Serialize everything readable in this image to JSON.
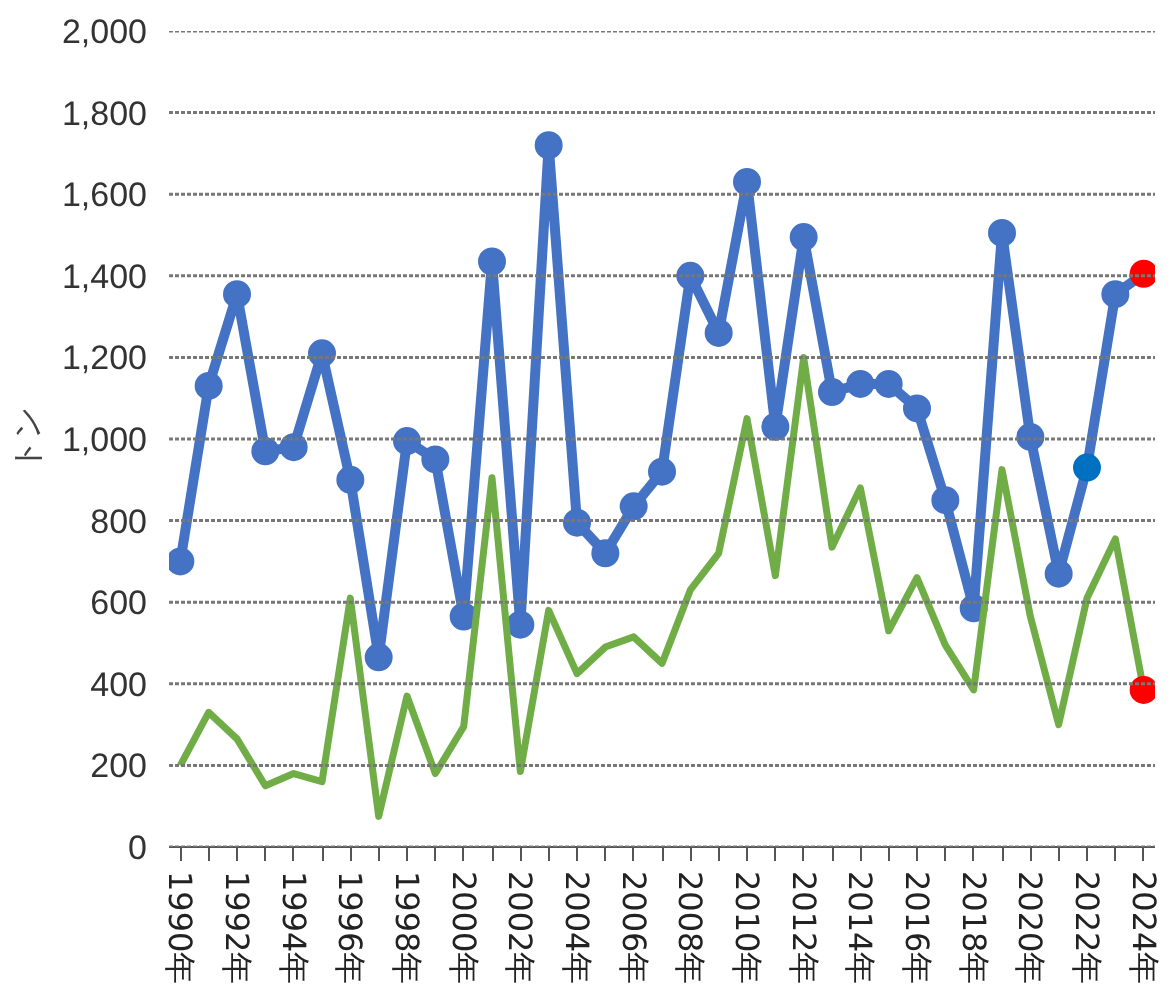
{
  "chart_data": {
    "type": "line",
    "ylabel": "トン",
    "categories": [
      "1990年",
      null,
      "1992年",
      null,
      "1994年",
      null,
      "1996年",
      null,
      "1998年",
      null,
      "2000年",
      null,
      "2002年",
      null,
      "2004年",
      null,
      "2006年",
      null,
      "2008年",
      null,
      "2010年",
      null,
      "2012年",
      null,
      "2014年",
      null,
      "2016年",
      null,
      "2018年",
      null,
      "2020年",
      null,
      "2022年",
      null,
      "2024年"
    ],
    "series": [
      {
        "color": "#4472c4",
        "marker": "circle",
        "values": [
          700,
          1130,
          1355,
          970,
          980,
          1210,
          900,
          465,
          995,
          950,
          565,
          1435,
          545,
          1720,
          795,
          720,
          835,
          920,
          1400,
          1260,
          1630,
          1030,
          1495,
          1115,
          1135,
          1135,
          1075,
          850,
          585,
          1505,
          1005,
          670,
          930,
          1355,
          1405
        ],
        "colors": [
          "#4472c4",
          "#4472c4",
          "#4472c4",
          "#4472c4",
          "#4472c4",
          "#4472c4",
          "#4472c4",
          "#4472c4",
          "#4472c4",
          "#4472c4",
          "#4472c4",
          "#4472c4",
          "#4472c4",
          "#4472c4",
          "#4472c4",
          "#4472c4",
          "#4472c4",
          "#4472c4",
          "#4472c4",
          "#4472c4",
          "#4472c4",
          "#4472c4",
          "#4472c4",
          "#4472c4",
          "#4472c4",
          "#4472c4",
          "#4472c4",
          "#4472c4",
          "#4472c4",
          "#4472c4",
          "#4472c4",
          "#4472c4",
          "#0070c0",
          "#4472c4",
          "#ff0000"
        ]
      },
      {
        "color": "#70ad47",
        "values": [
          200,
          330,
          265,
          150,
          180,
          160,
          610,
          75,
          370,
          180,
          295,
          905,
          185,
          580,
          425,
          490,
          515,
          450,
          630,
          720,
          1050,
          665,
          1200,
          735,
          880,
          530,
          660,
          495,
          385,
          925,
          565,
          300,
          610,
          755,
          385
        ],
        "colors": [
          null,
          null,
          null,
          null,
          null,
          null,
          null,
          null,
          null,
          null,
          null,
          null,
          null,
          null,
          null,
          null,
          null,
          null,
          null,
          null,
          null,
          null,
          null,
          null,
          null,
          null,
          null,
          null,
          null,
          null,
          null,
          null,
          null,
          null,
          "#ff0000"
        ]
      }
    ],
    "ylim": [
      0,
      2000
    ],
    "yticks": [
      0,
      200,
      400,
      600,
      800,
      {
        "value": 1000,
        "label": "1,000"
      },
      {
        "value": 1200,
        "label": "1,200"
      },
      {
        "value": 1400,
        "label": "1,400"
      },
      {
        "value": 1600,
        "label": "1,600"
      },
      {
        "value": 1800,
        "label": "1,800"
      },
      {
        "value": 2000,
        "label": "2,000"
      }
    ],
    "grid": "y"
  }
}
